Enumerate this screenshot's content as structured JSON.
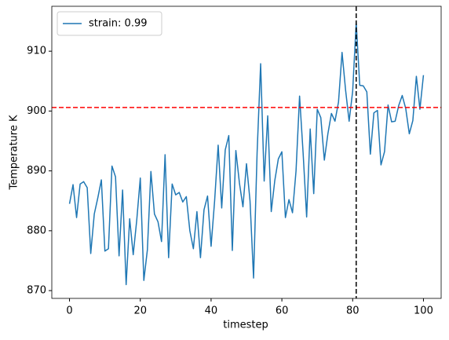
{
  "chart_data": {
    "type": "line",
    "xlabel": "timestep",
    "ylabel": "Temperature K",
    "x": [
      0,
      1,
      2,
      3,
      4,
      5,
      6,
      7,
      8,
      9,
      10,
      11,
      12,
      13,
      14,
      15,
      16,
      17,
      18,
      19,
      20,
      21,
      22,
      23,
      24,
      25,
      26,
      27,
      28,
      29,
      30,
      31,
      32,
      33,
      34,
      35,
      36,
      37,
      38,
      39,
      40,
      41,
      42,
      43,
      44,
      45,
      46,
      47,
      48,
      49,
      50,
      51,
      52,
      53,
      54,
      55,
      56,
      57,
      58,
      59,
      60,
      61,
      62,
      63,
      64,
      65,
      66,
      67,
      68,
      69,
      70,
      71,
      72,
      73,
      74,
      75,
      76,
      77,
      78,
      79,
      80,
      81,
      82,
      83,
      84,
      85,
      86,
      87,
      88,
      89,
      90,
      91,
      92,
      93,
      94,
      95,
      96,
      97,
      98,
      99,
      100
    ],
    "series": [
      {
        "name": "strain: 0.99",
        "color": "#1f77b4",
        "values": [
          884.5,
          887.7,
          882.2,
          887.8,
          888.2,
          887.2,
          876.2,
          882.8,
          885.5,
          888.5,
          876.6,
          877.0,
          890.8,
          889.0,
          875.8,
          886.8,
          871.0,
          882.0,
          876.0,
          881.8,
          888.8,
          871.7,
          876.8,
          889.9,
          882.8,
          881.5,
          878.2,
          892.7,
          875.5,
          887.8,
          886.0,
          886.4,
          884.8,
          885.7,
          880.0,
          877.0,
          883.2,
          875.5,
          883.5,
          885.8,
          877.4,
          885.0,
          894.3,
          883.8,
          893.5,
          895.9,
          876.7,
          893.4,
          888.0,
          884.0,
          891.2,
          885.0,
          872.1,
          893.0,
          907.9,
          888.3,
          899.2,
          883.2,
          888.4,
          892.0,
          893.2,
          882.2,
          885.2,
          883.0,
          890.0,
          902.5,
          893.0,
          882.3,
          897.0,
          886.2,
          900.3,
          898.9,
          891.8,
          896.2,
          899.6,
          898.3,
          901.5,
          909.8,
          903.5,
          898.3,
          903.3,
          914.8,
          904.3,
          904.2,
          903.2,
          892.8,
          899.7,
          900.1,
          891.0,
          893.2,
          901.0,
          898.2,
          898.3,
          900.9,
          902.6,
          900.4,
          896.2,
          898.4,
          905.8,
          900.3,
          906.0
        ]
      }
    ],
    "hline": {
      "value": 900.6,
      "color": "#ff0000"
    },
    "vline": {
      "value": 81,
      "color": "#000000"
    },
    "xlim": [
      -5,
      105
    ],
    "ylim": [
      868.7,
      917.5
    ],
    "xticks": [
      0,
      20,
      40,
      60,
      80,
      100
    ],
    "yticks": [
      870,
      880,
      890,
      900,
      910
    ],
    "legend": "upper left",
    "grid": false
  }
}
